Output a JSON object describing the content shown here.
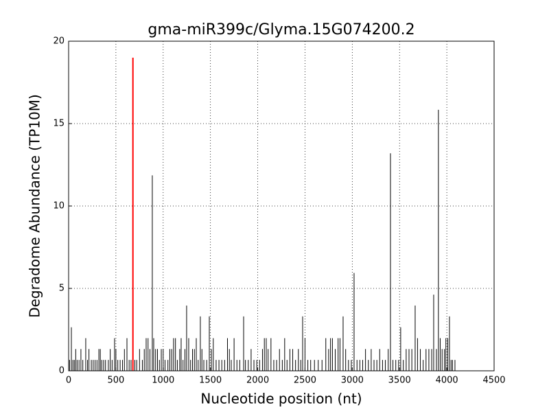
{
  "chart_data": {
    "type": "bar",
    "title": "gma-miR399c/Glyma.15G074200.2",
    "xlabel": "Nucleotide position (nt)",
    "ylabel": "Degradome Abundance (TP10M)",
    "xlim": [
      0,
      4500
    ],
    "xticks": [
      0,
      500,
      1000,
      1500,
      2000,
      2500,
      3000,
      3500,
      4000,
      4500
    ],
    "ylim": [
      0,
      20
    ],
    "yticks": [
      0,
      5,
      10,
      15,
      20
    ],
    "grid": true,
    "series": [
      {
        "color": "#000000",
        "x": [
          10,
          29,
          45,
          60,
          75,
          90,
          110,
          130,
          150,
          181,
          200,
          215,
          240,
          260,
          280,
          300,
          320,
          335,
          350,
          370,
          390,
          420,
          440,
          460,
          486,
          500,
          520,
          545,
          570,
          590,
          617,
          640,
          660,
          700,
          720,
          750,
          780,
          800,
          820,
          840,
          860,
          885,
          900,
          920,
          940,
          960,
          980,
          1000,
          1020,
          1050,
          1070,
          1090,
          1110,
          1130,
          1150,
          1175,
          1190,
          1210,
          1230,
          1248,
          1270,
          1290,
          1310,
          1330,
          1350,
          1370,
          1393,
          1410,
          1430,
          1460,
          1488,
          1510,
          1530,
          1560,
          1590,
          1620,
          1650,
          1680,
          1700,
          1720,
          1750,
          1780,
          1810,
          1851,
          1870,
          1900,
          1930,
          1960,
          1990,
          2020,
          2050,
          2070,
          2090,
          2110,
          2140,
          2170,
          2200,
          2230,
          2260,
          2285,
          2310,
          2340,
          2370,
          2400,
          2430,
          2455,
          2475,
          2500,
          2530,
          2560,
          2600,
          2640,
          2680,
          2720,
          2750,
          2770,
          2790,
          2820,
          2850,
          2870,
          2903,
          2930,
          2960,
          2990,
          3019,
          3050,
          3080,
          3110,
          3140,
          3170,
          3200,
          3230,
          3260,
          3290,
          3320,
          3350,
          3380,
          3404,
          3430,
          3460,
          3490,
          3512,
          3540,
          3570,
          3600,
          3630,
          3665,
          3690,
          3720,
          3750,
          3780,
          3810,
          3840,
          3861,
          3890,
          3911,
          3930,
          3950,
          3975,
          3990,
          4010,
          4028,
          4045,
          4060,
          4086
        ],
        "values": [
          0.66,
          2.64,
          0.66,
          0.66,
          1.32,
          0.66,
          0.66,
          1.32,
          0.66,
          1.98,
          0.66,
          1.32,
          0.66,
          0.66,
          0.66,
          0.66,
          1.32,
          1.32,
          0.66,
          0.66,
          0.66,
          0.66,
          1.32,
          0.66,
          1.98,
          1.32,
          0.66,
          0.66,
          0.66,
          1.32,
          1.98,
          0.66,
          0.66,
          0.66,
          0.66,
          1.32,
          0.66,
          1.32,
          1.98,
          1.98,
          1.32,
          11.86,
          1.98,
          1.32,
          1.32,
          0.66,
          1.32,
          1.32,
          0.66,
          0.66,
          1.32,
          1.32,
          1.98,
          1.98,
          0.66,
          1.32,
          1.98,
          0.66,
          1.32,
          3.96,
          1.98,
          0.66,
          1.32,
          1.32,
          1.98,
          0.66,
          3.3,
          1.32,
          0.66,
          0.66,
          3.3,
          1.32,
          1.98,
          0.66,
          0.66,
          0.66,
          0.66,
          1.98,
          1.32,
          0.66,
          1.98,
          0.66,
          0.66,
          3.3,
          0.66,
          0.66,
          1.32,
          0.66,
          0.66,
          0.66,
          1.32,
          1.98,
          1.98,
          1.32,
          1.98,
          0.66,
          0.66,
          1.32,
          0.66,
          1.98,
          0.66,
          1.32,
          1.32,
          0.66,
          1.32,
          0.66,
          3.3,
          1.98,
          0.66,
          0.66,
          0.66,
          0.66,
          0.66,
          1.98,
          1.32,
          1.98,
          1.98,
          1.32,
          1.98,
          1.98,
          3.3,
          1.32,
          0.66,
          0.66,
          5.94,
          0.66,
          0.66,
          0.66,
          1.32,
          0.66,
          1.32,
          0.66,
          0.66,
          1.32,
          0.66,
          0.66,
          1.32,
          13.2,
          0.66,
          0.66,
          0.66,
          2.64,
          0.66,
          1.32,
          1.32,
          1.32,
          3.96,
          1.98,
          1.32,
          0.66,
          1.32,
          1.32,
          1.32,
          4.62,
          1.32,
          15.84,
          1.98,
          1.32,
          1.32,
          1.98,
          1.98,
          3.3,
          0.66,
          0.66,
          0.66
        ]
      },
      {
        "color": "#ff0000",
        "x": [
          680
        ],
        "values": [
          19
        ]
      }
    ]
  }
}
